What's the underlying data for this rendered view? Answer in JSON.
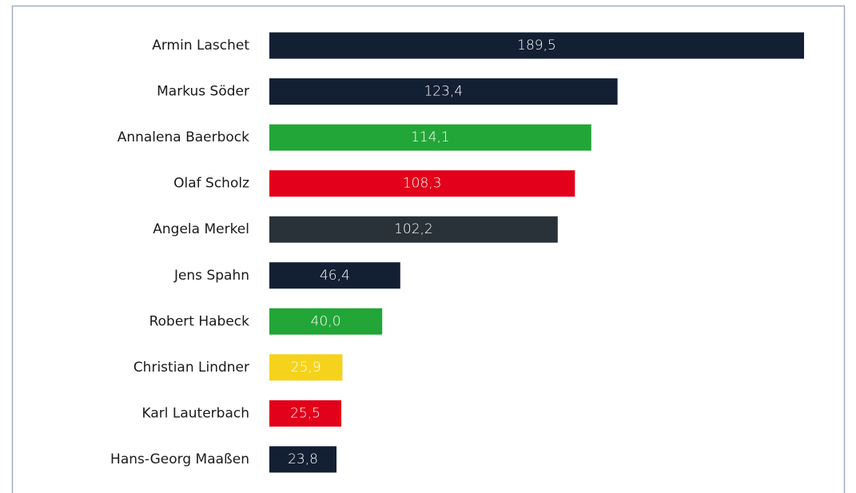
{
  "chart_data": {
    "type": "bar",
    "orientation": "horizontal",
    "categories": [
      "Armin Laschet",
      "Markus Söder",
      "Annalena Baerbock",
      "Olaf Scholz",
      "Angela Merkel",
      "Jens Spahn",
      "Robert Habeck",
      "Christian Lindner",
      "Karl Lauterbach",
      "Hans-Georg Maaßen"
    ],
    "values": [
      189.5,
      123.4,
      114.1,
      108.3,
      102.2,
      46.4,
      40.0,
      25.9,
      25.5,
      23.8
    ],
    "value_labels": [
      "189,5",
      "123,4",
      "114,1",
      "108,3",
      "102,2",
      "46,4",
      "40,0",
      "25,9",
      "25,5",
      "23,8"
    ],
    "colors": [
      "#131f33",
      "#131f33",
      "#22a637",
      "#e2001a",
      "#283238",
      "#131f33",
      "#22a637",
      "#f5d31c",
      "#e2001a",
      "#131f33"
    ]
  }
}
